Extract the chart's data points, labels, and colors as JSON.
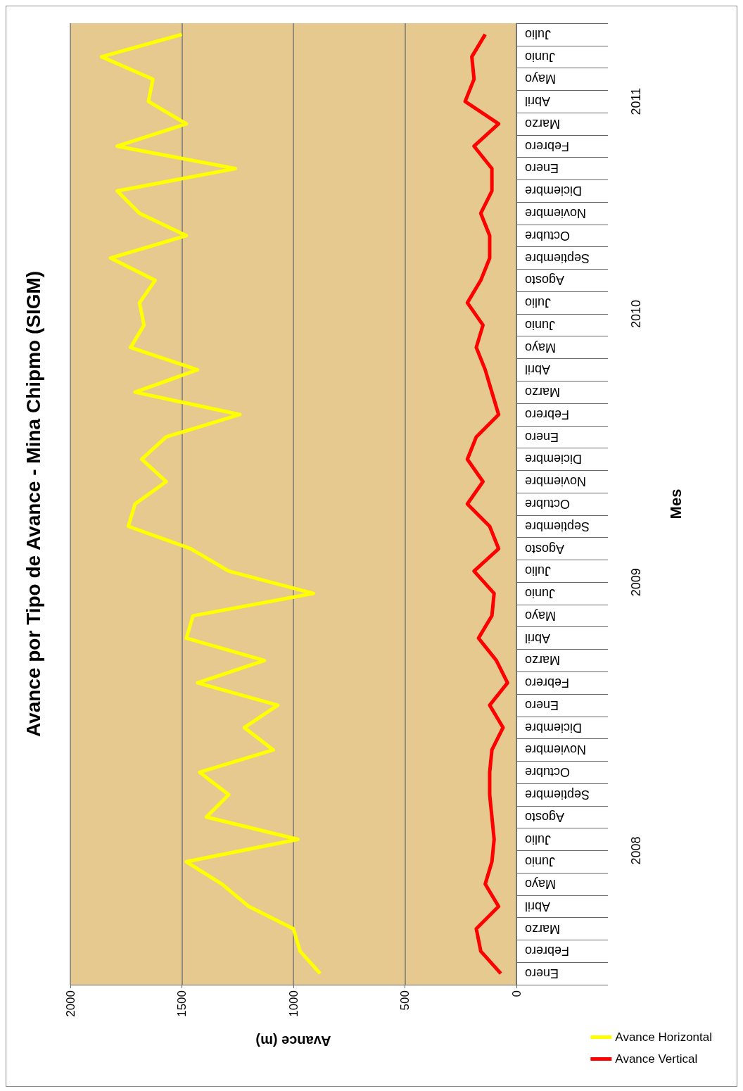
{
  "chart_data": {
    "type": "line",
    "orientation": "horizontal",
    "title": "Avance por Tipo de Avance - Mina Chipmo (SIGM)",
    "xlabel": "Avance (m)",
    "ylabel": "Mes",
    "categories": [
      "Julio",
      "Junio",
      "Mayo",
      "Abril",
      "Marzo",
      "Febrero",
      "Enero",
      "Diciembre",
      "Noviembre",
      "Octubre",
      "Septiembre",
      "Agosto",
      "Julio",
      "Junio",
      "Mayo",
      "Abril",
      "Marzo",
      "Febrero",
      "Enero",
      "Diciembre",
      "Noviembre",
      "Octubre",
      "Septiembre",
      "Agosto",
      "Julio",
      "Junio",
      "Mayo",
      "Abril",
      "Marzo",
      "Febrero",
      "Enero",
      "Diciembre",
      "Noviembre",
      "Octubre",
      "Septiembre",
      "Agosto",
      "Julio",
      "Junio",
      "Mayo",
      "Abril",
      "Marzo",
      "Febrero",
      "Enero"
    ],
    "annotations": [
      "2011",
      "2010",
      "2009",
      "2008"
    ],
    "series": [
      {
        "name": "Avance Horizontal",
        "color": "#ffff00",
        "values": [
          1500,
          1860,
          1630,
          1650,
          1480,
          1790,
          1260,
          1790,
          1690,
          1480,
          1820,
          1620,
          1690,
          1670,
          1730,
          1430,
          1710,
          1240,
          1570,
          1680,
          1570,
          1710,
          1740,
          1460,
          1290,
          910,
          1450,
          1480,
          1130,
          1430,
          1070,
          1220,
          1090,
          1420,
          1290,
          1390,
          980,
          1480,
          1320,
          1200,
          1000,
          970,
          880
        ]
      },
      {
        "name": "Avance Vertical",
        "color": "#ff0000",
        "values": [
          140,
          200,
          190,
          230,
          80,
          190,
          110,
          110,
          160,
          120,
          120,
          160,
          220,
          150,
          180,
          140,
          110,
          80,
          180,
          220,
          150,
          220,
          120,
          80,
          190,
          100,
          110,
          170,
          90,
          40,
          120,
          60,
          110,
          120,
          120,
          110,
          100,
          110,
          140,
          80,
          180,
          160,
          70
        ]
      }
    ],
    "xlim": [
      2000,
      0
    ],
    "xticks": [
      0,
      500,
      1000,
      1500,
      2000
    ],
    "grid": "x",
    "legend": "bottom right",
    "marker": "none",
    "line_style": "solid"
  }
}
